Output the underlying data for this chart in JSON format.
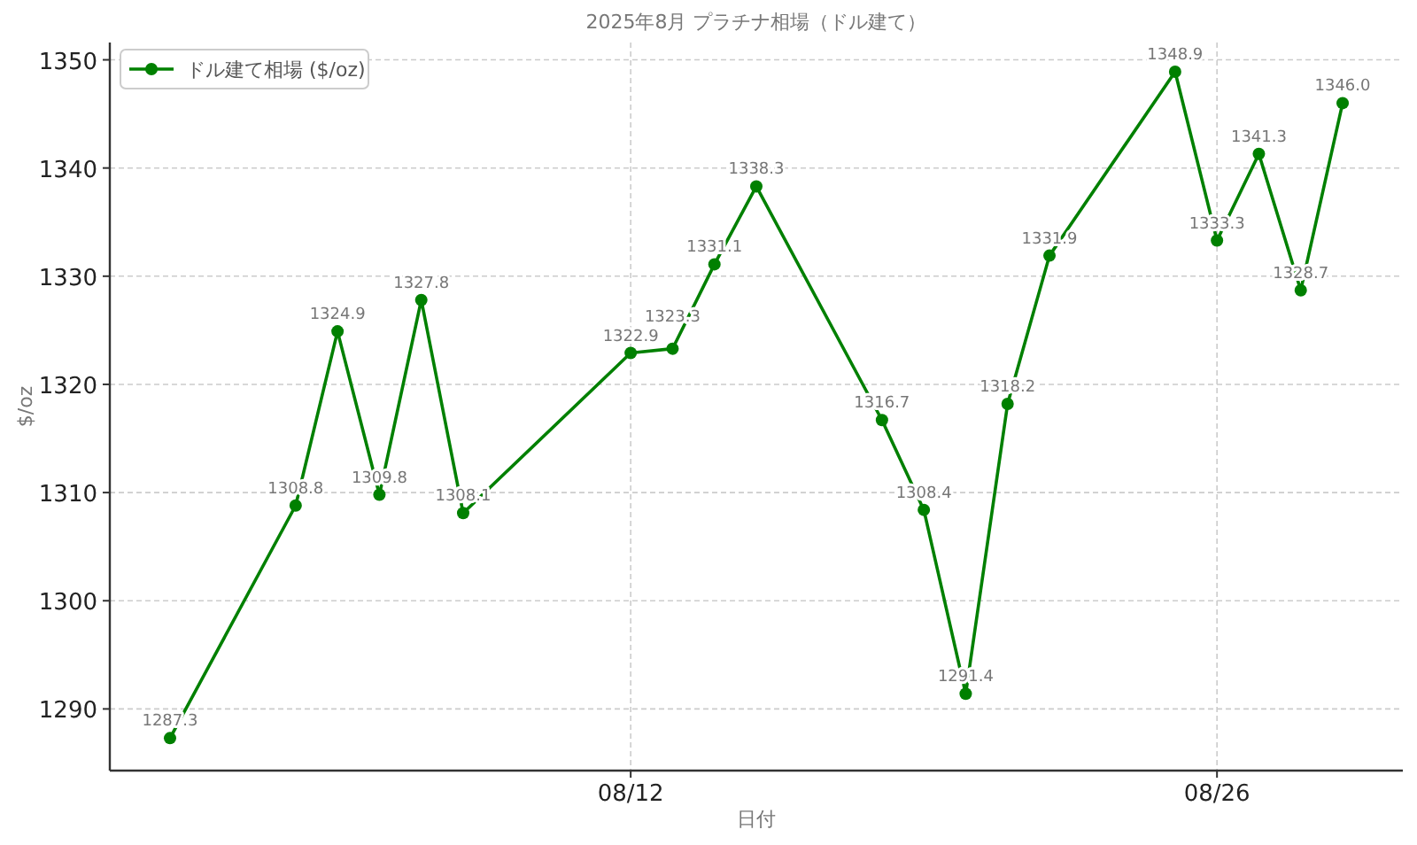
{
  "chart_data": {
    "type": "line",
    "title": "2025年8月 プラチナ相場（ドル建て）",
    "xlabel": "日付",
    "ylabel": "$/oz",
    "x": [
      "2025-08-01",
      "2025-08-04",
      "2025-08-05",
      "2025-08-06",
      "2025-08-07",
      "2025-08-08",
      "2025-08-12",
      "2025-08-13",
      "2025-08-14",
      "2025-08-15",
      "2025-08-18",
      "2025-08-19",
      "2025-08-20",
      "2025-08-21",
      "2025-08-22",
      "2025-08-25",
      "2025-08-26",
      "2025-08-27",
      "2025-08-28",
      "2025-08-29"
    ],
    "series": [
      {
        "name": "ドル建て相場 ($/oz)",
        "color": "#008000",
        "values": [
          1287.3,
          1308.8,
          1324.9,
          1309.8,
          1327.8,
          1308.1,
          1322.9,
          1323.3,
          1331.1,
          1338.3,
          1316.7,
          1308.4,
          1291.4,
          1318.2,
          1331.9,
          1348.9,
          1333.3,
          1341.3,
          1328.7,
          1346.0
        ],
        "value_labels": [
          "1287.3",
          "1308.8",
          "1324.9",
          "1309.8",
          "1327.8",
          "1308.1",
          "1322.9",
          "1323.3",
          "1331.1",
          "1338.3",
          "1316.7",
          "1308.4",
          "1291.4",
          "1318.2",
          "1331.9",
          "1348.9",
          "1333.3",
          "1341.3",
          "1328.7",
          "1346.0"
        ]
      }
    ],
    "xlim": [
      "2025-07-30T13:30",
      "2025-08-30T10:30"
    ],
    "xticks": [
      {
        "value": "2025-08-12",
        "label": "08/12"
      },
      {
        "value": "2025-08-26",
        "label": "08/26"
      }
    ],
    "ylim": [
      1284.3,
      1351.6
    ],
    "yticks": [
      1290,
      1300,
      1310,
      1320,
      1330,
      1340,
      1350
    ],
    "grid": true,
    "legend": "top left",
    "marker": "circle",
    "line_style": "solid"
  }
}
